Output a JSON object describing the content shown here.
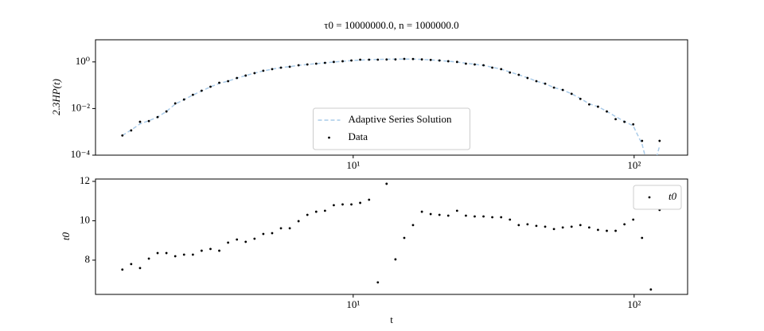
{
  "chart_data": [
    {
      "type": "line",
      "title": "τ0 = 10000000.0, n = 1000000.0",
      "ylabel": "2.3HP(t)",
      "xscale": "log",
      "yscale": "log",
      "xlim": [
        1.21,
        155
      ],
      "ylim": [
        0.0001,
        8.9
      ],
      "xticks": [
        {
          "value": 10,
          "label": "10¹"
        },
        {
          "value": 100,
          "label": "10²"
        }
      ],
      "yticks": [
        {
          "value": 0.0001,
          "label": "10⁻⁴"
        },
        {
          "value": 0.01,
          "label": "10⁻²"
        },
        {
          "value": 1,
          "label": "10⁰"
        }
      ],
      "legend": "lower center",
      "x": [
        1.508,
        1.621,
        1.743,
        1.874,
        2.013,
        2.164,
        2.326,
        2.5,
        2.688,
        2.888,
        3.105,
        3.337,
        3.587,
        3.856,
        4.144,
        4.455,
        4.788,
        5.147,
        5.532,
        5.946,
        6.391,
        6.87,
        7.384,
        7.937,
        8.531,
        9.17,
        9.854,
        10.59,
        11.39,
        12.24,
        13.15,
        14.14,
        15.2,
        16.33,
        17.56,
        18.87,
        20.28,
        21.8,
        23.43,
        25.19,
        27.07,
        29.1,
        31.27,
        33.62,
        36.13,
        38.84,
        41.74,
        44.87,
        48.23,
        51.84,
        55.72,
        59.89,
        64.37,
        69.2,
        74.37,
        79.94,
        85.93,
        92.37,
        99.27,
        106.7,
        114.7,
        123.2
      ],
      "series": [
        {
          "name": "Adaptive Series Solution",
          "type": "line",
          "color": "#a9cbe9",
          "values": [
            0.0007,
            0.0012,
            0.0022,
            0.003,
            0.0043,
            0.0075,
            0.0155,
            0.024,
            0.038,
            0.057,
            0.085,
            0.12,
            0.15,
            0.2,
            0.26,
            0.33,
            0.41,
            0.49,
            0.57,
            0.63,
            0.71,
            0.78,
            0.84,
            0.91,
            0.99,
            1.06,
            1.14,
            1.2,
            1.25,
            1.28,
            1.3,
            1.32,
            1.33,
            1.32,
            1.28,
            1.22,
            1.15,
            1.07,
            0.99,
            0.88,
            0.79,
            0.71,
            0.59,
            0.49,
            0.37,
            0.28,
            0.21,
            0.15,
            0.115,
            0.08,
            0.062,
            0.043,
            0.027,
            0.016,
            0.012,
            0.0076,
            0.0045,
            0.0028,
            0.0018,
            0.0003,
            1e-05,
            0.00025
          ]
        },
        {
          "name": "Data",
          "type": "scatter",
          "color": "#000000",
          "values": [
            0.0007,
            0.00115,
            0.0027,
            0.0029,
            0.0043,
            0.0075,
            0.0166,
            0.0244,
            0.039,
            0.058,
            0.086,
            0.128,
            0.149,
            0.205,
            0.26,
            0.33,
            0.42,
            0.49,
            0.57,
            0.62,
            0.72,
            0.78,
            0.84,
            0.91,
            1.0,
            1.07,
            1.15,
            1.25,
            1.25,
            1.25,
            1.27,
            1.28,
            1.35,
            1.33,
            1.28,
            1.22,
            1.15,
            1.07,
            1.0,
            0.84,
            0.78,
            0.72,
            0.57,
            0.49,
            0.35,
            0.28,
            0.205,
            0.149,
            0.117,
            0.079,
            0.063,
            0.043,
            0.026,
            0.015,
            0.012,
            0.0075,
            0.0035,
            0.0027,
            0.0021,
            0.00041,
            null,
            0.00041
          ]
        }
      ]
    },
    {
      "type": "scatter",
      "xlabel": "t",
      "ylabel": "t0",
      "xscale": "log",
      "xlim": [
        1.21,
        155
      ],
      "ylim": [
        6.26,
        12.12
      ],
      "xticks": [
        {
          "value": 10,
          "label": "10¹"
        },
        {
          "value": 100,
          "label": "10²"
        }
      ],
      "yticks": [
        8,
        10,
        12
      ],
      "legend": "upper right",
      "x": [
        1.508,
        1.621,
        1.743,
        1.874,
        2.013,
        2.164,
        2.326,
        2.5,
        2.688,
        2.888,
        3.105,
        3.337,
        3.587,
        3.856,
        4.144,
        4.455,
        4.788,
        5.147,
        5.532,
        5.946,
        6.391,
        6.87,
        7.384,
        7.937,
        8.531,
        9.17,
        9.854,
        10.59,
        11.39,
        12.24,
        13.15,
        14.14,
        15.2,
        16.33,
        17.56,
        18.87,
        20.28,
        21.8,
        23.43,
        25.19,
        27.07,
        29.1,
        31.27,
        33.62,
        36.13,
        38.84,
        41.74,
        44.87,
        48.23,
        51.84,
        55.72,
        59.89,
        64.37,
        69.2,
        74.37,
        79.94,
        85.93,
        92.37,
        99.27,
        106.7,
        114.7,
        123.2
      ],
      "series": [
        {
          "name": "t0",
          "type": "scatter",
          "color": "#000000",
          "values": [
            7.52,
            7.8,
            7.6,
            8.08,
            8.36,
            8.36,
            8.2,
            8.28,
            8.28,
            8.48,
            8.57,
            8.48,
            8.89,
            9.05,
            8.93,
            9.09,
            9.33,
            9.37,
            9.62,
            9.62,
            9.98,
            10.3,
            10.46,
            10.51,
            10.79,
            10.83,
            10.83,
            10.91,
            11.07,
            6.87,
            11.88,
            8.04,
            9.13,
            9.78,
            10.46,
            10.34,
            10.3,
            10.26,
            10.51,
            10.26,
            10.22,
            10.22,
            10.18,
            10.18,
            10.06,
            9.78,
            9.82,
            9.74,
            9.7,
            9.58,
            9.66,
            9.7,
            9.78,
            9.66,
            9.54,
            9.49,
            9.49,
            9.82,
            10.06,
            9.13,
            6.51,
            10.55
          ]
        }
      ]
    }
  ]
}
